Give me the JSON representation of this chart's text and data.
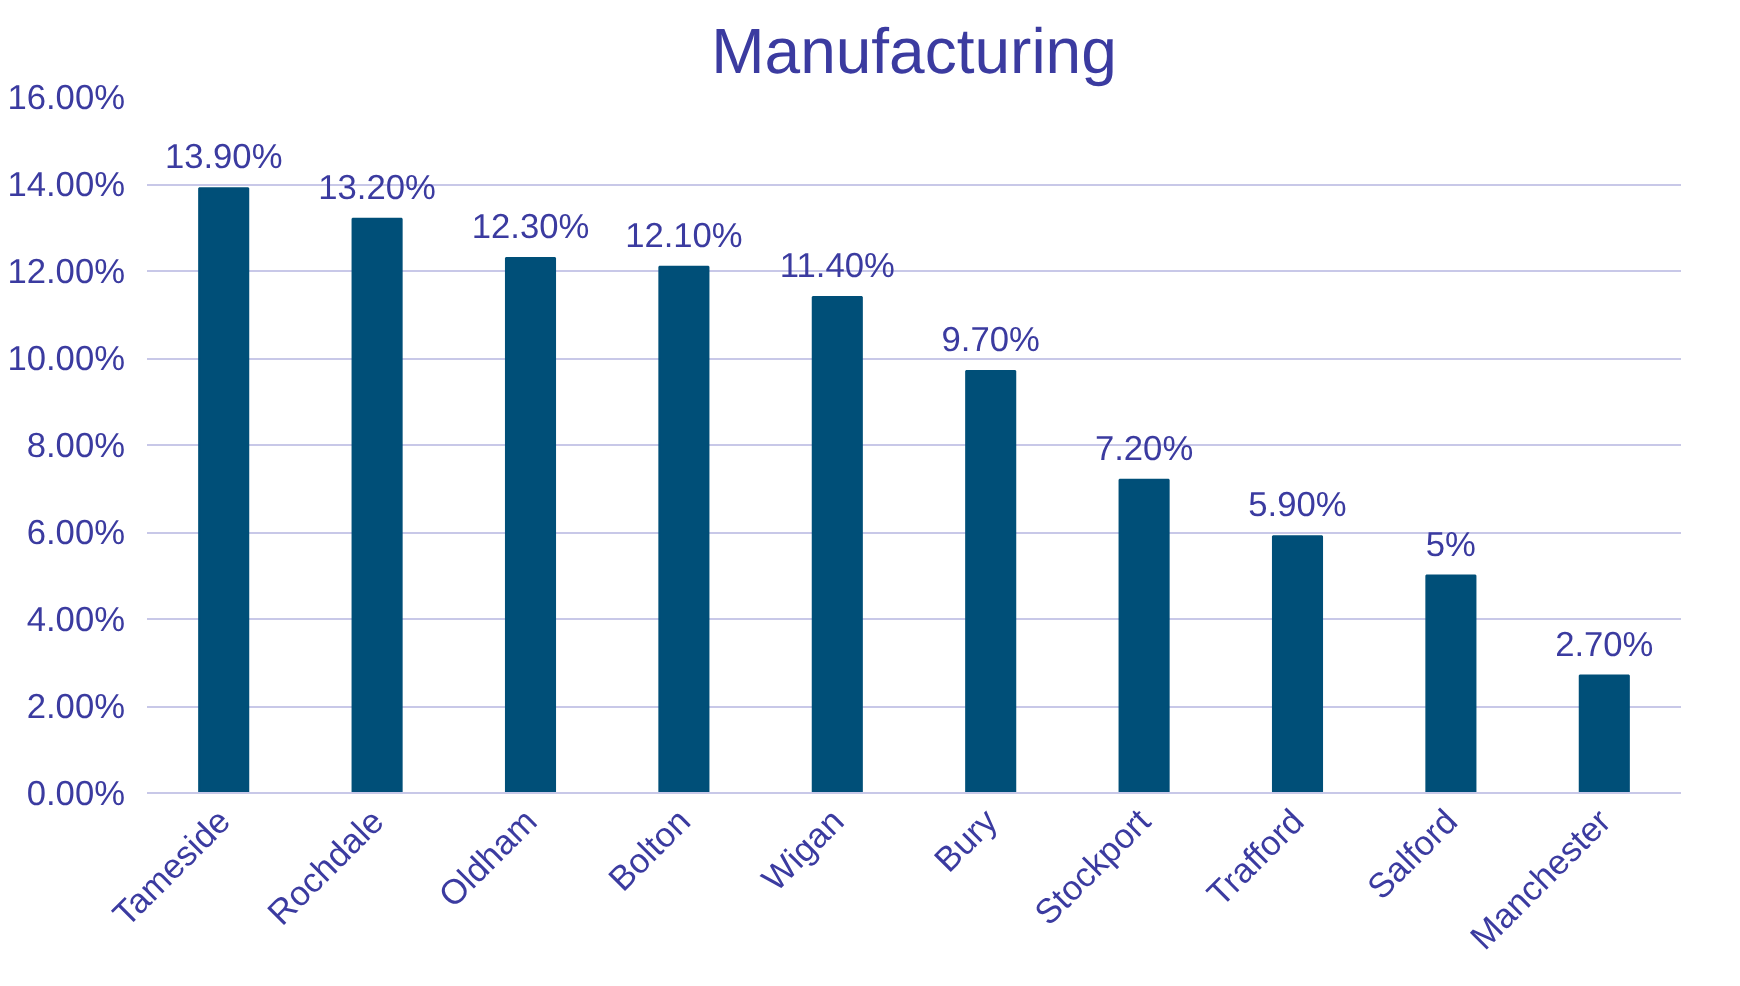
{
  "chart_data": {
    "type": "bar",
    "title": "Manufacturing",
    "categories": [
      "Tameside",
      "Rochdale",
      "Oldham",
      "Bolton",
      "Wigan",
      "Bury",
      "Stockport",
      "Trafford",
      "Salford",
      "Manchester"
    ],
    "values": [
      13.9,
      13.2,
      12.3,
      12.1,
      11.4,
      9.7,
      7.2,
      5.9,
      5,
      2.7
    ],
    "value_labels": [
      "13.90%",
      "13.20%",
      "12.30%",
      "12.10%",
      "11.40%",
      "9.70%",
      "7.20%",
      "5.90%",
      "5%",
      "2.70%"
    ],
    "color": "#004f78",
    "ylim": [
      0,
      16
    ],
    "yticks": [
      {
        "value": 0,
        "label": "0.00%"
      },
      {
        "value": 2,
        "label": "2.00%"
      },
      {
        "value": 4,
        "label": "4.00%"
      },
      {
        "value": 6,
        "label": "6.00%"
      },
      {
        "value": 8,
        "label": "8.00%"
      },
      {
        "value": 10,
        "label": "10.00%"
      },
      {
        "value": 12,
        "label": "12.00%"
      },
      {
        "value": 14,
        "label": "14.00%"
      },
      {
        "value": 16,
        "label": "16.00%"
      }
    ],
    "grid": "y"
  }
}
